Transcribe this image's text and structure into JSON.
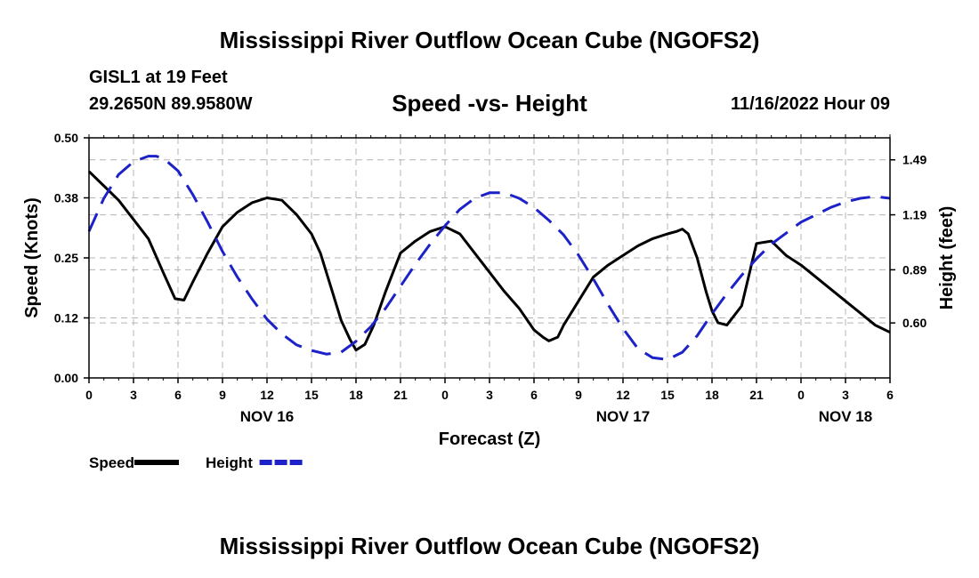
{
  "header": {
    "title": "Mississippi River Outflow Ocean Cube (NGOFS2)",
    "station": "GISL1 at 19 Feet",
    "coords": "29.2650N  89.9580W",
    "subtitle": "Speed -vs- Height",
    "run_time": "11/16/2022 Hour 09"
  },
  "footer": {
    "title": "Mississippi River Outflow Ocean Cube (NGOFS2)"
  },
  "colors": {
    "speed": "#000000",
    "height": "#1c22c8",
    "grid": "#b4b4b4"
  },
  "chart_data": {
    "type": "line",
    "xlabel": "Forecast (Z)",
    "ylabel_left": "Speed (Knots)",
    "ylabel_right": "Height (feet)",
    "x_unit": "hours since 00Z Nov 16",
    "xlim": [
      0,
      54
    ],
    "ylim_left": [
      0.0,
      0.5
    ],
    "ylim_right": [
      0.3,
      1.61
    ],
    "x_ticks": [
      0,
      3,
      6,
      9,
      12,
      15,
      18,
      21,
      24,
      27,
      30,
      33,
      36,
      39,
      42,
      45,
      48,
      51,
      54
    ],
    "x_tick_labels": [
      "0",
      "3",
      "6",
      "9",
      "12",
      "15",
      "18",
      "21",
      "0",
      "3",
      "6",
      "9",
      "12",
      "15",
      "18",
      "21",
      "0",
      "3",
      "6"
    ],
    "left_ticks": [
      0.0,
      0.125,
      0.25,
      0.375,
      0.5
    ],
    "left_tick_labels": [
      "0.00",
      "0.12",
      "0.25",
      "0.38",
      "0.50"
    ],
    "right_ticks": [
      0.6,
      0.89,
      1.19,
      1.49
    ],
    "right_tick_labels": [
      "0.60",
      "0.89",
      "1.19",
      "1.49"
    ],
    "date_labels": [
      {
        "x": 12,
        "text": "NOV 16"
      },
      {
        "x": 36,
        "text": "NOV 17"
      },
      {
        "x": 51,
        "text": "NOV 18"
      }
    ],
    "series": [
      {
        "name": "Speed",
        "axis": "left",
        "style": "solid",
        "x": [
          0,
          1,
          2,
          3,
          4,
          5,
          5.8,
          6.4,
          7,
          8,
          9,
          10,
          11,
          12,
          13,
          14,
          15,
          15.6,
          16.3,
          17,
          17.6,
          18,
          18.6,
          19.2,
          20,
          21,
          22,
          23,
          24,
          25,
          26,
          27,
          28,
          29,
          30,
          30.6,
          31,
          31.6,
          32,
          33,
          34,
          35,
          36,
          37,
          38,
          39,
          39.6,
          40,
          40.4,
          41,
          41.6,
          42,
          42.4,
          43,
          44,
          45,
          46,
          47,
          48,
          49,
          50,
          51,
          52,
          53,
          54
        ],
        "values": [
          0.43,
          0.4,
          0.37,
          0.33,
          0.29,
          0.22,
          0.165,
          0.162,
          0.2,
          0.26,
          0.315,
          0.345,
          0.365,
          0.375,
          0.37,
          0.34,
          0.3,
          0.26,
          0.19,
          0.12,
          0.08,
          0.058,
          0.07,
          0.11,
          0.18,
          0.26,
          0.285,
          0.305,
          0.315,
          0.3,
          0.26,
          0.22,
          0.18,
          0.145,
          0.1,
          0.085,
          0.077,
          0.085,
          0.11,
          0.16,
          0.21,
          0.235,
          0.255,
          0.275,
          0.29,
          0.3,
          0.305,
          0.31,
          0.3,
          0.25,
          0.18,
          0.14,
          0.115,
          0.11,
          0.15,
          0.28,
          0.285,
          0.255,
          0.235,
          0.21,
          0.185,
          0.16,
          0.135,
          0.11,
          0.095
        ]
      },
      {
        "name": "Height",
        "axis": "right",
        "style": "dashed",
        "x": [
          0,
          1,
          2,
          3,
          4,
          4.5,
          5,
          6,
          7,
          8,
          9,
          10,
          11,
          12,
          13,
          14,
          15,
          16,
          17,
          18,
          19,
          20,
          21,
          22,
          23,
          24,
          25,
          26,
          27,
          28,
          29,
          30,
          31,
          32,
          33,
          34,
          35,
          36,
          37,
          38,
          39,
          40,
          41,
          42,
          43,
          44,
          45,
          46,
          47,
          48,
          49,
          50,
          51,
          52,
          53,
          54
        ],
        "values": [
          1.1,
          1.28,
          1.41,
          1.48,
          1.51,
          1.51,
          1.5,
          1.43,
          1.3,
          1.15,
          0.99,
          0.85,
          0.73,
          0.62,
          0.54,
          0.48,
          0.45,
          0.43,
          0.44,
          0.5,
          0.58,
          0.68,
          0.8,
          0.92,
          1.03,
          1.13,
          1.22,
          1.28,
          1.31,
          1.31,
          1.28,
          1.23,
          1.16,
          1.08,
          0.97,
          0.84,
          0.7,
          0.57,
          0.46,
          0.41,
          0.4,
          0.44,
          0.53,
          0.65,
          0.76,
          0.86,
          0.95,
          1.03,
          1.09,
          1.15,
          1.19,
          1.23,
          1.26,
          1.28,
          1.29,
          1.28
        ]
      }
    ],
    "legend": [
      {
        "label": "Speed",
        "style": "solid"
      },
      {
        "label": "Height",
        "style": "dashed"
      }
    ]
  }
}
